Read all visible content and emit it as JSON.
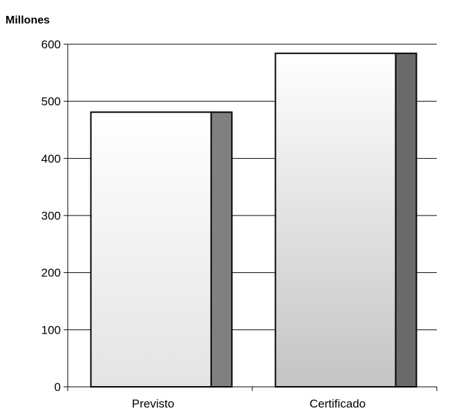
{
  "chart_data": {
    "type": "bar",
    "unit_label": "Millones",
    "categories": [
      "Previsto",
      "Certificado"
    ],
    "values": [
      481,
      584
    ],
    "ylim": [
      0,
      600
    ],
    "yticks": [
      0,
      100,
      200,
      300,
      400,
      500,
      600
    ],
    "grid": true,
    "legend": "none",
    "colors": {
      "bar_face_top": "#ffffff",
      "bar_face_bottom_first": "#e4e4e4",
      "bar_face_bottom_second": "#c4c4c4",
      "bar_side_first": "#808080",
      "bar_side_second": "#6a6a6a",
      "outline": "#000000",
      "grid": "#000000"
    }
  }
}
